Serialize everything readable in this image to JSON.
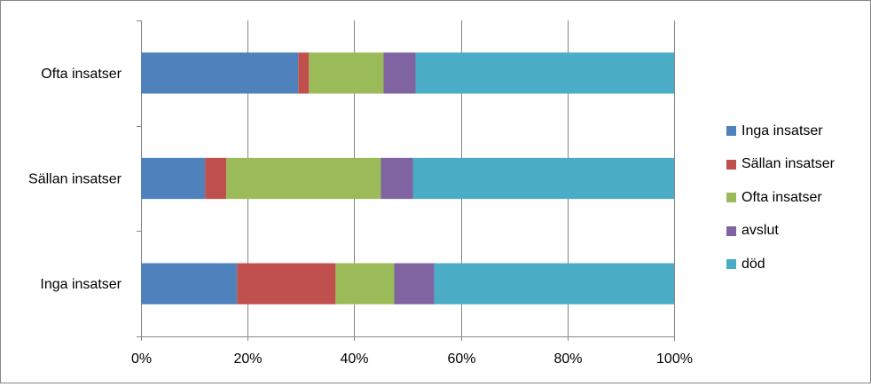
{
  "chart_data": {
    "type": "bar",
    "orientation": "horizontal",
    "stacked": "percent",
    "categories": [
      "Ofta insatser",
      "Sällan insatser",
      "Inga insatser"
    ],
    "series": [
      {
        "name": "Inga insatser",
        "color": "#4f81bd",
        "values": [
          29.5,
          12,
          18
        ]
      },
      {
        "name": "Sällan insatser",
        "color": "#c0504d",
        "values": [
          2,
          4,
          18.5
        ]
      },
      {
        "name": "Ofta insatser",
        "color": "#9bbb59",
        "values": [
          14,
          29,
          11
        ]
      },
      {
        "name": "avslut",
        "color": "#8064a2",
        "values": [
          6,
          6,
          7.5
        ]
      },
      {
        "name": "död",
        "color": "#4bacc6",
        "values": [
          48.5,
          49,
          45
        ]
      }
    ],
    "xlim": [
      0,
      100
    ],
    "x_ticks": [
      "0%",
      "20%",
      "40%",
      "60%",
      "80%",
      "100%"
    ],
    "grid": "vertical",
    "legend_position": "right"
  }
}
